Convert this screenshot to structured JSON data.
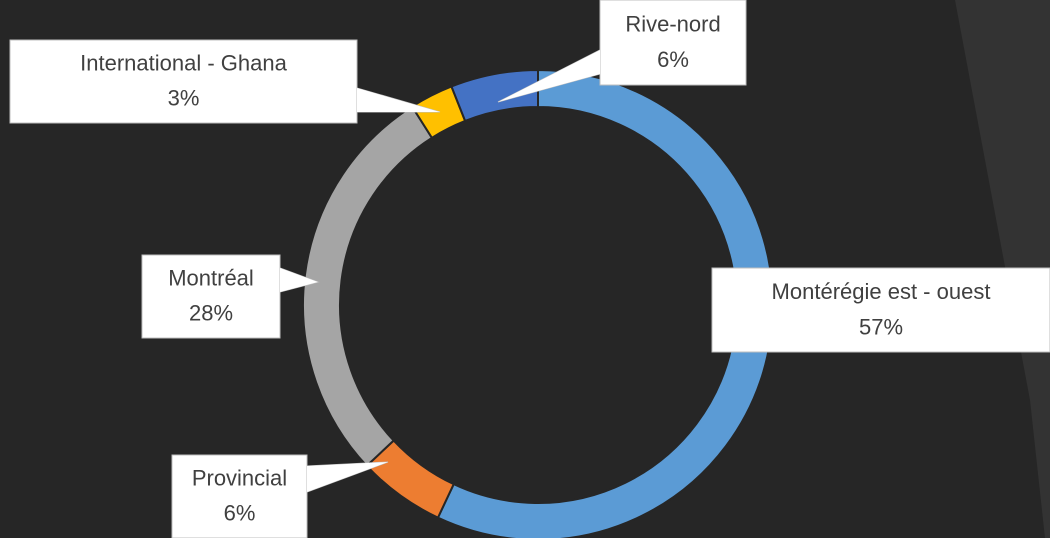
{
  "chart_data": {
    "type": "donut",
    "categories": [
      "Montérégie est - ouest",
      "Provincial",
      "Montréal",
      "International - Ghana",
      "Rive-nord"
    ],
    "values": [
      57,
      6,
      28,
      3,
      6
    ],
    "value_labels": [
      "57%",
      "6%",
      "28%",
      "3%",
      "6%"
    ],
    "colors": [
      "#5b9bd5",
      "#ed7d31",
      "#a5a5a5",
      "#ffc000",
      "#4472c4"
    ]
  }
}
